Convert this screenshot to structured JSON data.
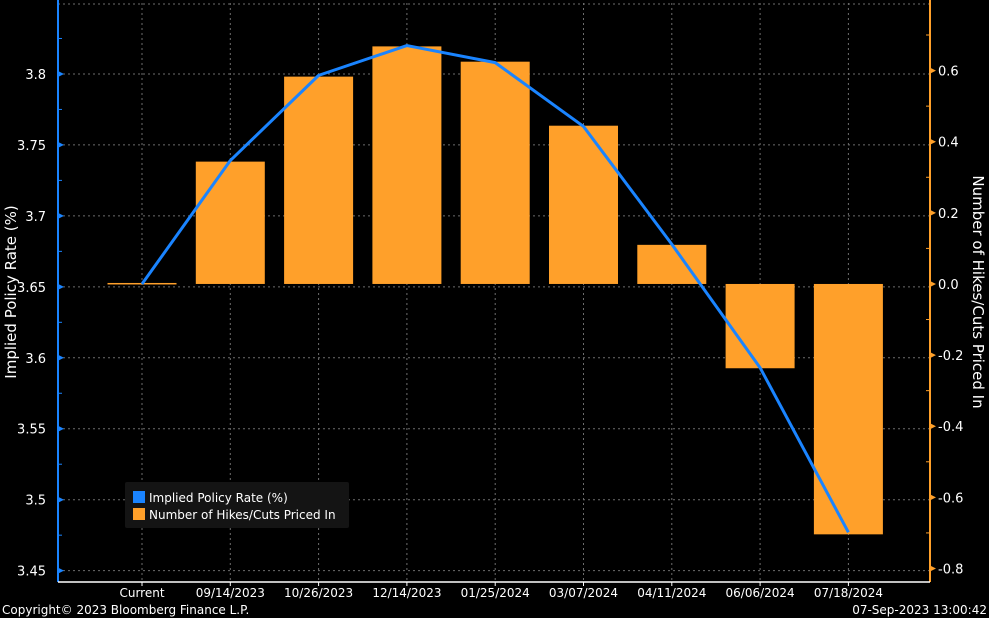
{
  "chart_data": {
    "type": "bar+line",
    "categories": [
      "Current",
      "09/14/2023",
      "10/26/2023",
      "12/14/2023",
      "01/25/2024",
      "03/07/2024",
      "04/11/2024",
      "06/06/2024",
      "07/18/2024"
    ],
    "series": [
      {
        "name": "Implied Policy Rate (%)",
        "kind": "line",
        "axis": "left",
        "color": "#1a84ff",
        "values": [
          3.652,
          3.739,
          3.799,
          3.82,
          3.808,
          3.763,
          3.68,
          3.593,
          3.477
        ]
      },
      {
        "name": "Number of Hikes/Cuts Priced In",
        "kind": "bar",
        "axis": "right",
        "color": "#ffa02a",
        "values": [
          0.0,
          0.344,
          0.583,
          0.668,
          0.625,
          0.445,
          0.11,
          -0.237,
          -0.704
        ]
      }
    ],
    "ylabel": "Implied Policy Rate (%)",
    "ylabel_right": "Number of Hikes/Cuts Priced In",
    "ylim": [
      3.442,
      3.85
    ],
    "ylim_right": [
      -0.838,
      0.79
    ],
    "yticks": [
      "3.8",
      "3.75",
      "3.7",
      "3.65",
      "3.6",
      "3.55",
      "3.5",
      "3.45"
    ],
    "yticks_right": [
      "0.6",
      "0.4",
      "0.2",
      "0.0",
      "-0.2",
      "-0.4",
      "-0.6",
      "-0.8"
    ],
    "grid": true,
    "legend_position": "bottom-left"
  },
  "footer": {
    "copyright": "Copyright© 2023 Bloomberg Finance L.P.",
    "timestamp": "07-Sep-2023 13:00:42"
  },
  "colors": {
    "background": "#000000",
    "left_axis": "#1a84ff",
    "right_axis": "#ffa02a",
    "grid": "#6e6e6e"
  }
}
